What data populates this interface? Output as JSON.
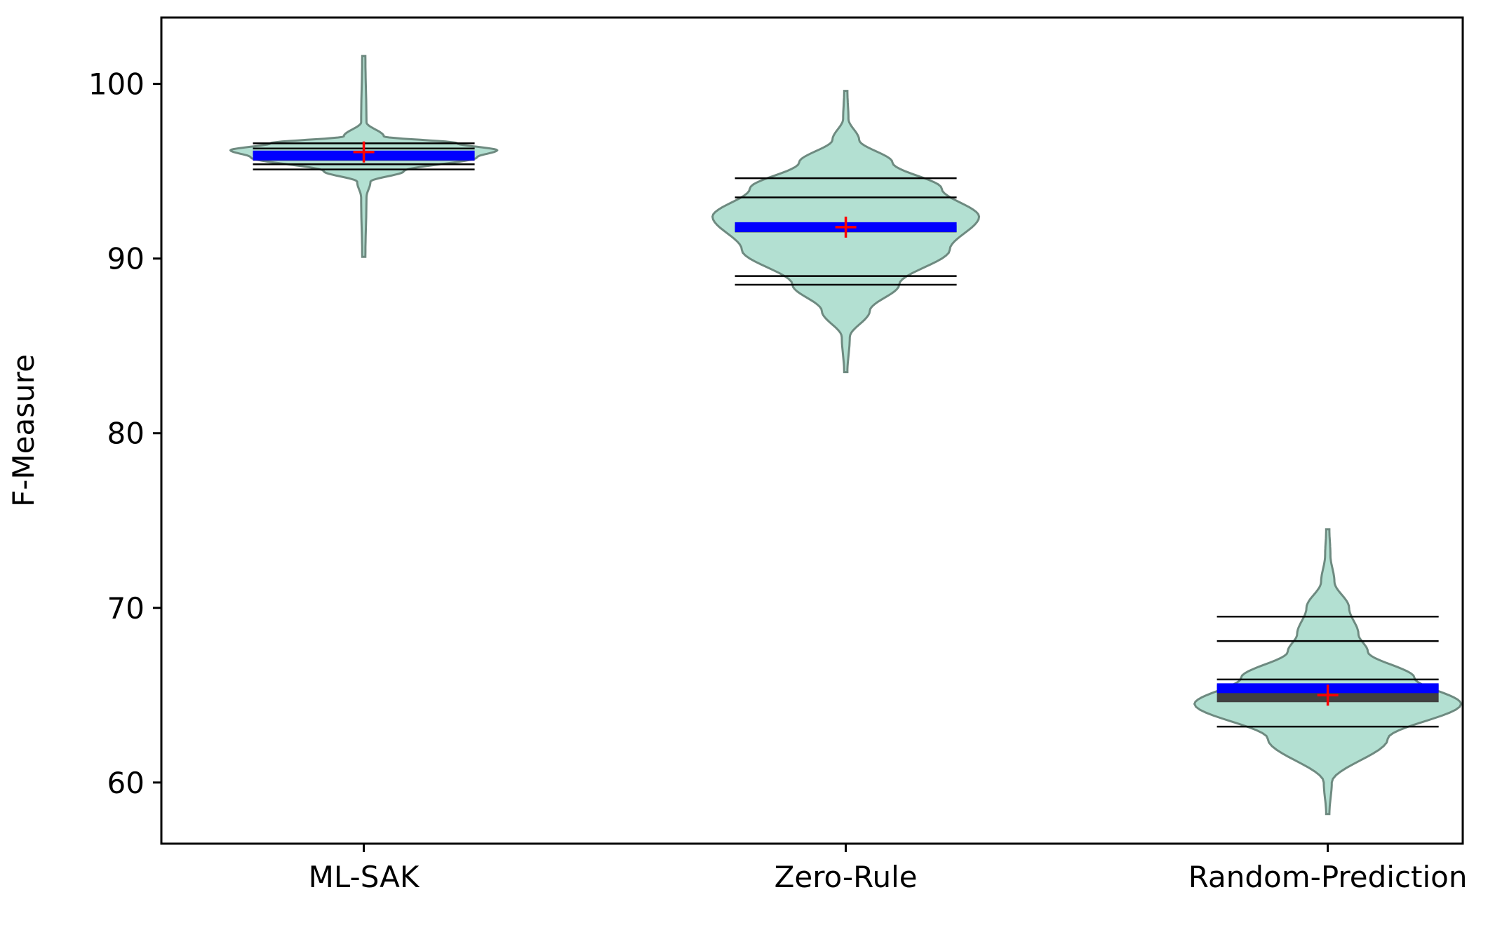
{
  "chart_data": {
    "type": "violin",
    "title": "",
    "xlabel": "",
    "ylabel": "F-Measure",
    "ylim": [
      56.5,
      103.8
    ],
    "yticks": [
      60,
      70,
      80,
      90,
      100
    ],
    "grid": false,
    "legend": null,
    "categories": [
      "ML-SAK",
      "Zero-Rule",
      "Random-Prediction"
    ],
    "colors": {
      "violin_fill": "#b3e0d2",
      "violin_edge": "#6e8a80",
      "median_bar": "#0000ff",
      "quartile_bar": "#404040",
      "mean_marker": "#ff0000",
      "percentile_lines": "#000000",
      "whisker": "#707070"
    },
    "series": [
      {
        "category": "ML-SAK",
        "min": 90.1,
        "max": 101.6,
        "mean": 96.1,
        "median": 95.9,
        "q1": 95.6,
        "q3": 96.1,
        "percentile_lines": [
          95.1,
          95.4,
          96.3,
          96.6
        ],
        "density_halfwidth": [
          [
            90.1,
            0.01
          ],
          [
            93.5,
            0.02
          ],
          [
            94.4,
            0.05
          ],
          [
            95.0,
            0.3
          ],
          [
            95.8,
            0.85
          ],
          [
            96.2,
            1.0
          ],
          [
            96.6,
            0.7
          ],
          [
            97.0,
            0.15
          ],
          [
            97.8,
            0.02
          ],
          [
            101.6,
            0.01
          ]
        ]
      },
      {
        "category": "Zero-Rule",
        "min": 83.5,
        "max": 99.6,
        "mean": 91.8,
        "median": 91.8,
        "q1": 91.7,
        "q3": 91.9,
        "percentile_lines": [
          88.5,
          89.0,
          93.5,
          94.6
        ],
        "density_halfwidth": [
          [
            83.5,
            0.01
          ],
          [
            85.5,
            0.03
          ],
          [
            87.0,
            0.18
          ],
          [
            88.5,
            0.4
          ],
          [
            90.5,
            0.78
          ],
          [
            92.4,
            1.0
          ],
          [
            94.0,
            0.72
          ],
          [
            95.5,
            0.35
          ],
          [
            96.8,
            0.1
          ],
          [
            98.0,
            0.02
          ],
          [
            99.6,
            0.01
          ]
        ]
      },
      {
        "category": "Random-Prediction",
        "min": 58.2,
        "max": 74.5,
        "mean": 65.0,
        "median": 65.4,
        "q1": 64.6,
        "q3": 65.6,
        "percentile_lines": [
          63.2,
          65.9,
          68.1,
          69.5
        ],
        "density_halfwidth": [
          [
            58.2,
            0.01
          ],
          [
            60.0,
            0.03
          ],
          [
            62.5,
            0.45
          ],
          [
            64.5,
            1.0
          ],
          [
            66.0,
            0.65
          ],
          [
            67.5,
            0.3
          ],
          [
            68.5,
            0.23
          ],
          [
            70.0,
            0.16
          ],
          [
            71.5,
            0.05
          ],
          [
            73.0,
            0.02
          ],
          [
            74.5,
            0.01
          ]
        ]
      }
    ]
  }
}
